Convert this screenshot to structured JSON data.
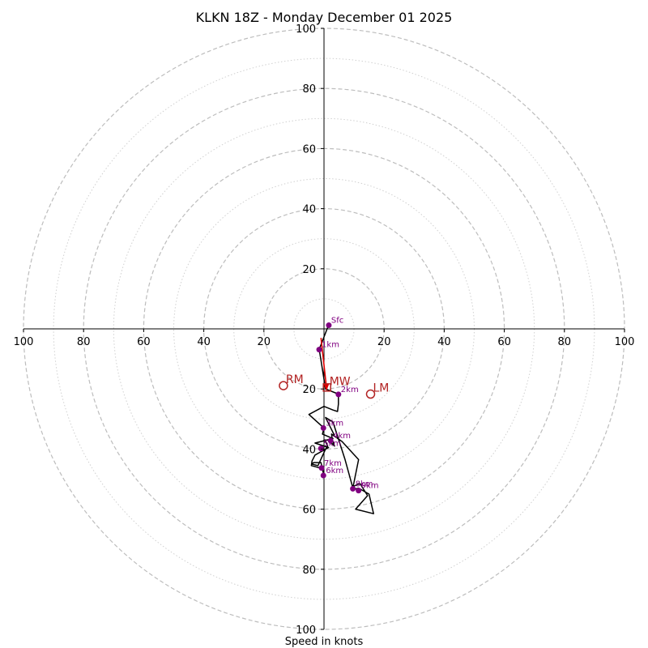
{
  "chart_data": {
    "type": "hodograph",
    "title": "KLKN 18Z - Monday December 01 2025",
    "xlabel": "Speed in knots",
    "axis_ticks": [
      20,
      40,
      60,
      80,
      100
    ],
    "x_tick_labels": [
      "100",
      "80",
      "60",
      "40",
      "20",
      "20",
      "40",
      "60",
      "80",
      "100"
    ],
    "y_tick_labels": [
      "100",
      "80",
      "60",
      "40",
      "20",
      "20",
      "40",
      "60",
      "80",
      "100"
    ],
    "range_knots": [
      -100,
      100
    ],
    "rings_dashed": [
      20,
      40,
      60,
      80,
      100
    ],
    "rings_dotted": [
      10,
      30,
      50,
      70,
      90
    ],
    "hodograph_trace": [
      {
        "u": 1.5,
        "v": 1.2
      },
      {
        "u": -1.6,
        "v": -6.8
      },
      {
        "u": -1.0,
        "v": -10.5
      },
      {
        "u": 0.5,
        "v": -20.0
      },
      {
        "u": 4.8,
        "v": -21.7
      },
      {
        "u": 4.8,
        "v": -25.0
      },
      {
        "u": 4.5,
        "v": -27.5
      },
      {
        "u": 3.0,
        "v": -27.0
      },
      {
        "u": 0.0,
        "v": -25.8
      },
      {
        "u": -5.0,
        "v": -28.5
      },
      {
        "u": 0.0,
        "v": -33.0
      },
      {
        "u": -0.5,
        "v": -35.0
      },
      {
        "u": 3.0,
        "v": -36.5
      },
      {
        "u": -3.0,
        "v": -38.0
      },
      {
        "u": 1.5,
        "v": -39.5
      },
      {
        "u": -3.0,
        "v": -42.0
      },
      {
        "u": -4.0,
        "v": -44.0
      },
      {
        "u": -4.2,
        "v": -45.5
      },
      {
        "u": -0.5,
        "v": -46.5
      },
      {
        "u": 0.0,
        "v": -49.0
      },
      {
        "u": -1.0,
        "v": -44.5
      },
      {
        "u": -3.5,
        "v": -44.5
      },
      {
        "u": -4.0,
        "v": -45.0
      },
      {
        "u": -2.0,
        "v": -45.5
      },
      {
        "u": 0.5,
        "v": -40.0
      },
      {
        "u": 1.2,
        "v": -39.0
      },
      {
        "u": 0.5,
        "v": -37.5
      },
      {
        "u": 0.0,
        "v": -37.0
      },
      {
        "u": 1.5,
        "v": -37.0
      },
      {
        "u": 3.5,
        "v": -39.0
      },
      {
        "u": 2.8,
        "v": -37.0
      },
      {
        "u": 2.5,
        "v": -35.0
      },
      {
        "u": 6.0,
        "v": -37.5
      },
      {
        "u": 11.5,
        "v": -43.5
      },
      {
        "u": 9.5,
        "v": -53.5
      },
      {
        "u": 11.5,
        "v": -53.0
      },
      {
        "u": 15.0,
        "v": -55.0
      },
      {
        "u": 16.5,
        "v": -61.5
      },
      {
        "u": 10.5,
        "v": -60.0
      },
      {
        "u": 14.5,
        "v": -55.5
      },
      {
        "u": 12.0,
        "v": -51.5
      },
      {
        "u": 9.5,
        "v": -52.5
      },
      {
        "u": 7.0,
        "v": -43.5
      },
      {
        "u": 3.0,
        "v": -31.0
      },
      {
        "u": 0.5,
        "v": -29.5
      },
      {
        "u": 3.5,
        "v": -35.5
      }
    ],
    "height_markers": [
      {
        "label": "Sfc",
        "u": 1.6,
        "v": 1.2
      },
      {
        "label": "1km",
        "u": -1.6,
        "v": -6.9
      },
      {
        "label": "2km",
        "u": 4.8,
        "v": -21.8
      },
      {
        "label": "3km",
        "u": -0.2,
        "v": -33.0
      },
      {
        "label": "4km",
        "u": 2.2,
        "v": -37.2
      },
      {
        "label": "5km",
        "u": -1.0,
        "v": -39.8
      },
      {
        "label": "6km",
        "u": -0.2,
        "v": -48.8
      },
      {
        "label": "7km",
        "u": -0.8,
        "v": -46.3
      },
      {
        "label": "8km",
        "u": 9.6,
        "v": -53.2
      },
      {
        "label": "9km",
        "u": 11.5,
        "v": -53.8
      }
    ],
    "storm_motion": [
      {
        "label": "RM",
        "u": -13.5,
        "v": -18.9
      },
      {
        "label": "MW",
        "u": 1.0,
        "v": -19.5
      },
      {
        "label": "LM",
        "u": 15.5,
        "v": -21.7
      }
    ],
    "shear_vector": {
      "from": {
        "u": -1.0,
        "v": -3.0
      },
      "to": {
        "u": 0.8,
        "v": -19.3
      }
    },
    "colors": {
      "trace": "#000000",
      "marker": "#800080",
      "storm_motion": "#b22222",
      "shear": "#e00000",
      "ring": "#bdbdbd",
      "axis": "#000000"
    }
  }
}
